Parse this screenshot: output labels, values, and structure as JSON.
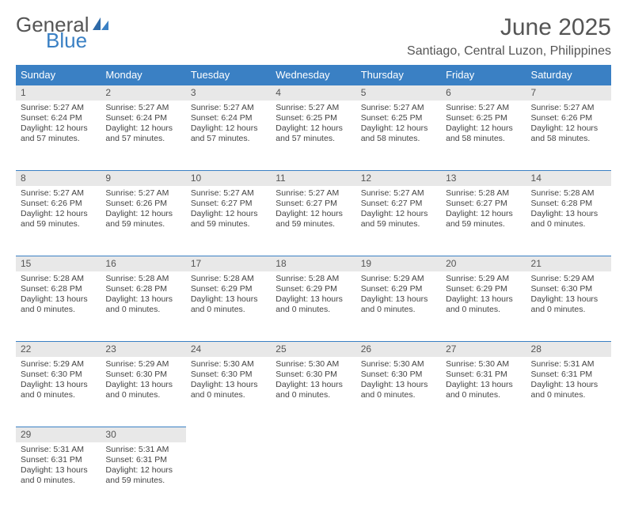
{
  "logo": {
    "word1": "General",
    "word2": "Blue"
  },
  "title": "June 2025",
  "location": "Santiago, Central Luzon, Philippines",
  "header_bg": "#3a80c4",
  "daynum_bg": "#e8e8e8",
  "daynum_border": "#3a80c4",
  "text_color": "#444444",
  "columns": [
    "Sunday",
    "Monday",
    "Tuesday",
    "Wednesday",
    "Thursday",
    "Friday",
    "Saturday"
  ],
  "weeks": [
    [
      {
        "n": "1",
        "sr": "5:27 AM",
        "ss": "6:24 PM",
        "dl": "12 hours and 57 minutes."
      },
      {
        "n": "2",
        "sr": "5:27 AM",
        "ss": "6:24 PM",
        "dl": "12 hours and 57 minutes."
      },
      {
        "n": "3",
        "sr": "5:27 AM",
        "ss": "6:24 PM",
        "dl": "12 hours and 57 minutes."
      },
      {
        "n": "4",
        "sr": "5:27 AM",
        "ss": "6:25 PM",
        "dl": "12 hours and 57 minutes."
      },
      {
        "n": "5",
        "sr": "5:27 AM",
        "ss": "6:25 PM",
        "dl": "12 hours and 58 minutes."
      },
      {
        "n": "6",
        "sr": "5:27 AM",
        "ss": "6:25 PM",
        "dl": "12 hours and 58 minutes."
      },
      {
        "n": "7",
        "sr": "5:27 AM",
        "ss": "6:26 PM",
        "dl": "12 hours and 58 minutes."
      }
    ],
    [
      {
        "n": "8",
        "sr": "5:27 AM",
        "ss": "6:26 PM",
        "dl": "12 hours and 59 minutes."
      },
      {
        "n": "9",
        "sr": "5:27 AM",
        "ss": "6:26 PM",
        "dl": "12 hours and 59 minutes."
      },
      {
        "n": "10",
        "sr": "5:27 AM",
        "ss": "6:27 PM",
        "dl": "12 hours and 59 minutes."
      },
      {
        "n": "11",
        "sr": "5:27 AM",
        "ss": "6:27 PM",
        "dl": "12 hours and 59 minutes."
      },
      {
        "n": "12",
        "sr": "5:27 AM",
        "ss": "6:27 PM",
        "dl": "12 hours and 59 minutes."
      },
      {
        "n": "13",
        "sr": "5:28 AM",
        "ss": "6:27 PM",
        "dl": "12 hours and 59 minutes."
      },
      {
        "n": "14",
        "sr": "5:28 AM",
        "ss": "6:28 PM",
        "dl": "13 hours and 0 minutes."
      }
    ],
    [
      {
        "n": "15",
        "sr": "5:28 AM",
        "ss": "6:28 PM",
        "dl": "13 hours and 0 minutes."
      },
      {
        "n": "16",
        "sr": "5:28 AM",
        "ss": "6:28 PM",
        "dl": "13 hours and 0 minutes."
      },
      {
        "n": "17",
        "sr": "5:28 AM",
        "ss": "6:29 PM",
        "dl": "13 hours and 0 minutes."
      },
      {
        "n": "18",
        "sr": "5:28 AM",
        "ss": "6:29 PM",
        "dl": "13 hours and 0 minutes."
      },
      {
        "n": "19",
        "sr": "5:29 AM",
        "ss": "6:29 PM",
        "dl": "13 hours and 0 minutes."
      },
      {
        "n": "20",
        "sr": "5:29 AM",
        "ss": "6:29 PM",
        "dl": "13 hours and 0 minutes."
      },
      {
        "n": "21",
        "sr": "5:29 AM",
        "ss": "6:30 PM",
        "dl": "13 hours and 0 minutes."
      }
    ],
    [
      {
        "n": "22",
        "sr": "5:29 AM",
        "ss": "6:30 PM",
        "dl": "13 hours and 0 minutes."
      },
      {
        "n": "23",
        "sr": "5:29 AM",
        "ss": "6:30 PM",
        "dl": "13 hours and 0 minutes."
      },
      {
        "n": "24",
        "sr": "5:30 AM",
        "ss": "6:30 PM",
        "dl": "13 hours and 0 minutes."
      },
      {
        "n": "25",
        "sr": "5:30 AM",
        "ss": "6:30 PM",
        "dl": "13 hours and 0 minutes."
      },
      {
        "n": "26",
        "sr": "5:30 AM",
        "ss": "6:30 PM",
        "dl": "13 hours and 0 minutes."
      },
      {
        "n": "27",
        "sr": "5:30 AM",
        "ss": "6:31 PM",
        "dl": "13 hours and 0 minutes."
      },
      {
        "n": "28",
        "sr": "5:31 AM",
        "ss": "6:31 PM",
        "dl": "13 hours and 0 minutes."
      }
    ],
    [
      {
        "n": "29",
        "sr": "5:31 AM",
        "ss": "6:31 PM",
        "dl": "13 hours and 0 minutes."
      },
      {
        "n": "30",
        "sr": "5:31 AM",
        "ss": "6:31 PM",
        "dl": "12 hours and 59 minutes."
      },
      null,
      null,
      null,
      null,
      null
    ]
  ],
  "labels": {
    "sunrise": "Sunrise:",
    "sunset": "Sunset:",
    "daylight": "Daylight:"
  }
}
